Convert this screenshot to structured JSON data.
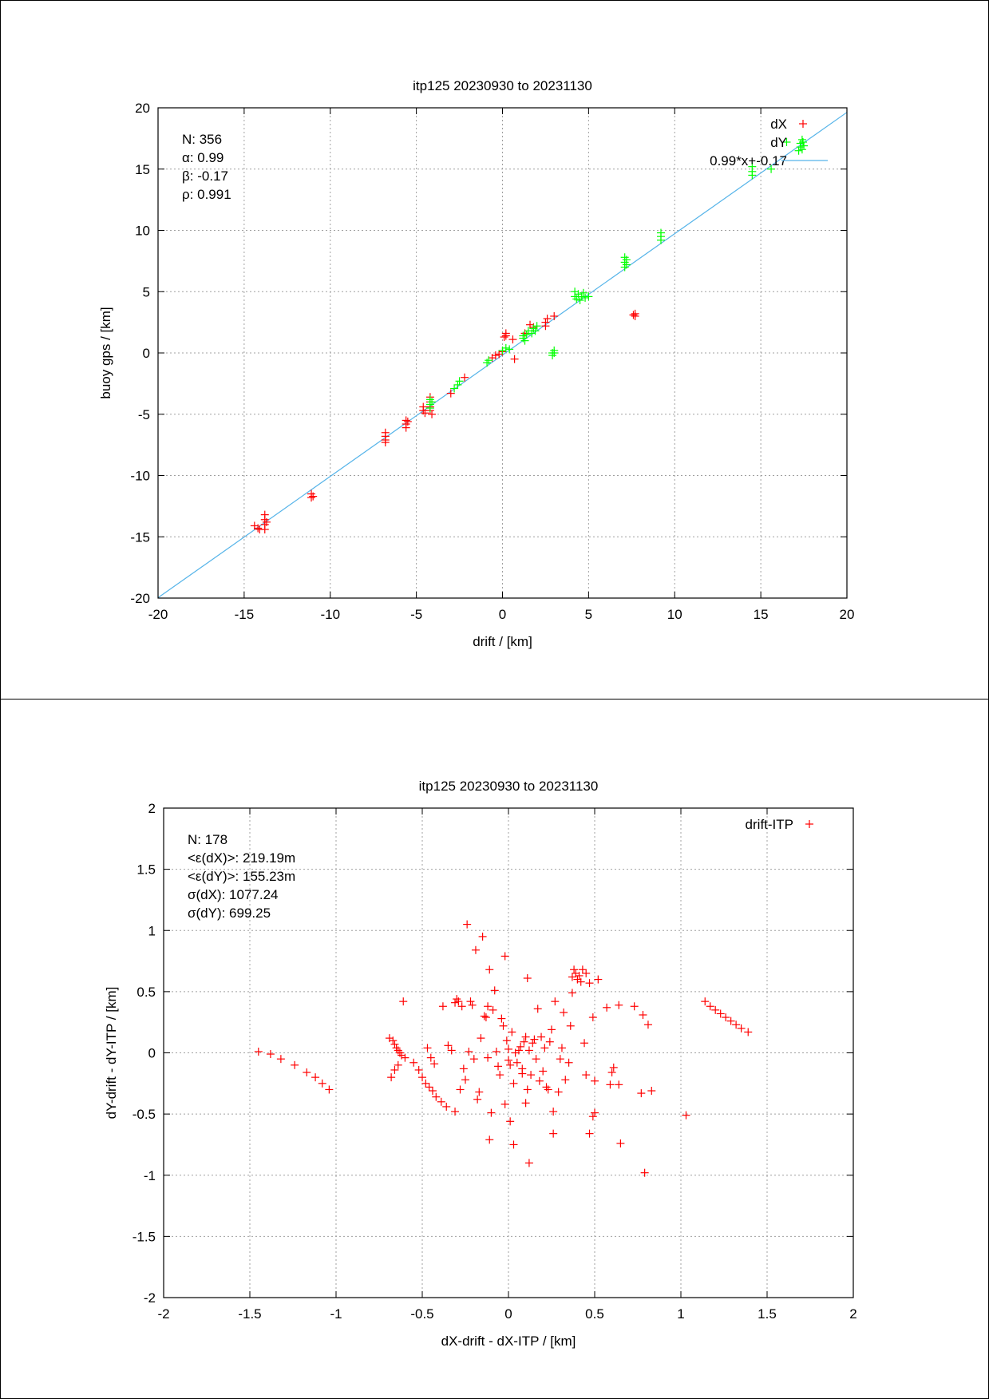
{
  "chart_data": [
    {
      "type": "scatter",
      "title": "itp125 20230930 to 20231130",
      "xlabel": "drift / [km]",
      "ylabel": "buoy gps / [km]",
      "xlim": [
        -20,
        20
      ],
      "ylim": [
        -20,
        20
      ],
      "xticks": [
        "-20",
        "-15",
        "-10",
        "-5",
        "0",
        "5",
        "10",
        "15",
        "20"
      ],
      "yticks": [
        "-20",
        "-15",
        "-10",
        "-5",
        "0",
        "5",
        "10",
        "15",
        "20"
      ],
      "grid": true,
      "legend_position": "top-right",
      "stats": [
        "N: 356",
        "α: 0.99",
        "β: -0.17",
        "ρ: 0.991"
      ],
      "fit": {
        "label": "0.99*x+-0.17",
        "slope": 0.99,
        "intercept": -0.17,
        "color": "#56b4e9"
      },
      "series": [
        {
          "name": "dX",
          "color": "#ff0000",
          "points": [
            [
              -14.4,
              -14.1
            ],
            [
              -14.2,
              -14.3
            ],
            [
              -14.1,
              -14.4
            ],
            [
              -13.8,
              -13.2
            ],
            [
              -13.8,
              -13.6
            ],
            [
              -13.8,
              -14.0
            ],
            [
              -13.8,
              -14.4
            ],
            [
              -13.7,
              -13.8
            ],
            [
              -11.1,
              -11.5
            ],
            [
              -11.0,
              -11.7
            ],
            [
              -11.1,
              -11.8
            ],
            [
              -6.8,
              -6.5
            ],
            [
              -6.8,
              -6.8
            ],
            [
              -6.8,
              -7.1
            ],
            [
              -6.8,
              -7.3
            ],
            [
              -5.6,
              -5.5
            ],
            [
              -5.6,
              -5.8
            ],
            [
              -5.6,
              -6.1
            ],
            [
              -5.5,
              -5.6
            ],
            [
              -4.6,
              -4.4
            ],
            [
              -4.6,
              -4.7
            ],
            [
              -4.5,
              -4.9
            ],
            [
              -4.2,
              -3.6
            ],
            [
              -4.2,
              -4.0
            ],
            [
              -4.2,
              -4.4
            ],
            [
              -4.2,
              -4.7
            ],
            [
              -4.1,
              -5.0
            ],
            [
              -3.0,
              -3.3
            ],
            [
              -2.2,
              -2.0
            ],
            [
              -0.6,
              -0.4
            ],
            [
              -0.4,
              -0.2
            ],
            [
              -0.2,
              -0.1
            ],
            [
              0.0,
              0.1
            ],
            [
              0.1,
              1.3
            ],
            [
              0.2,
              1.6
            ],
            [
              0.2,
              1.4
            ],
            [
              0.6,
              1.1
            ],
            [
              0.7,
              -0.5
            ],
            [
              1.3,
              1.6
            ],
            [
              1.6,
              2.3
            ],
            [
              1.8,
              2.1
            ],
            [
              2.5,
              2.2
            ],
            [
              2.5,
              2.5
            ],
            [
              2.6,
              2.8
            ],
            [
              3.0,
              3.0
            ],
            [
              7.6,
              3.1
            ],
            [
              7.7,
              3.2
            ],
            [
              7.7,
              3.0
            ]
          ]
        },
        {
          "name": "dY",
          "color": "#00ff00",
          "points": [
            [
              -4.2,
              -3.8
            ],
            [
              -4.2,
              -4.2
            ],
            [
              -4.2,
              -4.5
            ],
            [
              -4.1,
              -4.0
            ],
            [
              -2.8,
              -2.9
            ],
            [
              -2.6,
              -2.6
            ],
            [
              -2.5,
              -2.3
            ],
            [
              -0.9,
              -0.8
            ],
            [
              -0.8,
              -0.6
            ],
            [
              0.0,
              0.2
            ],
            [
              0.2,
              0.4
            ],
            [
              0.4,
              0.3
            ],
            [
              1.2,
              1.2
            ],
            [
              1.2,
              1.4
            ],
            [
              1.3,
              1.0
            ],
            [
              1.4,
              1.5
            ],
            [
              1.5,
              1.8
            ],
            [
              1.7,
              1.6
            ],
            [
              1.8,
              2.0
            ],
            [
              1.9,
              1.8
            ],
            [
              2.0,
              2.2
            ],
            [
              2.9,
              0.0
            ],
            [
              2.9,
              -0.2
            ],
            [
              3.0,
              0.2
            ],
            [
              3.0,
              0.0
            ],
            [
              4.2,
              4.6
            ],
            [
              4.2,
              5.0
            ],
            [
              4.3,
              4.4
            ],
            [
              4.4,
              4.8
            ],
            [
              4.5,
              4.3
            ],
            [
              4.6,
              4.6
            ],
            [
              4.7,
              4.9
            ],
            [
              4.8,
              4.5
            ],
            [
              5.0,
              4.6
            ],
            [
              7.1,
              7.0
            ],
            [
              7.1,
              7.4
            ],
            [
              7.1,
              7.8
            ],
            [
              7.2,
              7.2
            ],
            [
              7.2,
              7.6
            ],
            [
              9.2,
              9.2
            ],
            [
              9.2,
              9.5
            ],
            [
              9.2,
              9.8
            ],
            [
              14.5,
              14.5
            ],
            [
              14.5,
              14.8
            ],
            [
              14.5,
              15.2
            ],
            [
              15.6,
              15.0
            ],
            [
              16.5,
              17.2
            ],
            [
              17.2,
              16.5
            ],
            [
              17.3,
              16.8
            ],
            [
              17.3,
              17.1
            ],
            [
              17.4,
              17.4
            ],
            [
              17.4,
              16.6
            ],
            [
              17.5,
              16.9
            ]
          ]
        }
      ]
    },
    {
      "type": "scatter",
      "title": "itp125 20230930 to 20231130",
      "xlabel": "dX-drift - dX-ITP / [km]",
      "ylabel": "dY-drift - dY-ITP / [km]",
      "xlim": [
        -2,
        2
      ],
      "ylim": [
        -2,
        2
      ],
      "xticks": [
        "-2",
        "-1.5",
        "-1",
        "-0.5",
        "0",
        "0.5",
        "1",
        "1.5",
        "2"
      ],
      "yticks": [
        "-2",
        "-1.5",
        "-1",
        "-0.5",
        "0",
        "0.5",
        "1",
        "1.5",
        "2"
      ],
      "grid": true,
      "legend_position": "top-right",
      "stats": [
        "N: 178",
        "<ε(dX)>:  219.19m",
        "<ε(dY)>: 155.23m",
        "σ(dX):  1077.24",
        "σ(dY):  699.25"
      ],
      "series": [
        {
          "name": "drift-ITP",
          "color": "#ff0000",
          "points": [
            [
              -1.45,
              0.01
            ],
            [
              -1.38,
              -0.01
            ],
            [
              -1.32,
              -0.05
            ],
            [
              -1.24,
              -0.1
            ],
            [
              -1.17,
              -0.16
            ],
            [
              -1.12,
              -0.2
            ],
            [
              -1.08,
              -0.25
            ],
            [
              -1.04,
              -0.3
            ],
            [
              -0.69,
              0.12
            ],
            [
              -0.67,
              0.1
            ],
            [
              -0.66,
              0.07
            ],
            [
              -0.65,
              0.04
            ],
            [
              -0.64,
              0.02
            ],
            [
              -0.63,
              0.0
            ],
            [
              -0.62,
              -0.02
            ],
            [
              -0.6,
              -0.04
            ],
            [
              -0.68,
              -0.2
            ],
            [
              -0.66,
              -0.14
            ],
            [
              -0.64,
              -0.1
            ],
            [
              -0.61,
              0.42
            ],
            [
              -0.55,
              -0.08
            ],
            [
              -0.52,
              -0.14
            ],
            [
              -0.5,
              -0.2
            ],
            [
              -0.48,
              -0.25
            ],
            [
              -0.46,
              -0.28
            ],
            [
              -0.44,
              -0.31
            ],
            [
              -0.42,
              -0.36
            ],
            [
              -0.39,
              -0.4
            ],
            [
              -0.36,
              -0.44
            ],
            [
              -0.31,
              -0.48
            ],
            [
              -0.47,
              0.04
            ],
            [
              -0.45,
              -0.04
            ],
            [
              -0.43,
              -0.09
            ],
            [
              -0.38,
              0.38
            ],
            [
              -0.35,
              0.06
            ],
            [
              -0.33,
              0.02
            ],
            [
              -0.31,
              0.41
            ],
            [
              -0.3,
              0.44
            ],
            [
              -0.29,
              0.42
            ],
            [
              -0.28,
              -0.3
            ],
            [
              -0.27,
              0.38
            ],
            [
              -0.26,
              -0.13
            ],
            [
              -0.25,
              -0.22
            ],
            [
              -0.24,
              1.05
            ],
            [
              -0.23,
              0.01
            ],
            [
              -0.22,
              0.42
            ],
            [
              -0.21,
              0.39
            ],
            [
              -0.2,
              -0.05
            ],
            [
              -0.19,
              0.84
            ],
            [
              -0.18,
              -0.38
            ],
            [
              -0.17,
              -0.32
            ],
            [
              -0.16,
              0.12
            ],
            [
              -0.15,
              0.95
            ],
            [
              -0.14,
              0.3
            ],
            [
              -0.13,
              0.29
            ],
            [
              -0.12,
              0.38
            ],
            [
              -0.12,
              -0.04
            ],
            [
              -0.11,
              0.68
            ],
            [
              -0.11,
              -0.71
            ],
            [
              -0.1,
              -0.49
            ],
            [
              -0.09,
              0.35
            ],
            [
              -0.08,
              0.51
            ],
            [
              -0.07,
              0.01
            ],
            [
              -0.06,
              -0.11
            ],
            [
              -0.05,
              -0.18
            ],
            [
              -0.04,
              0.28
            ],
            [
              -0.03,
              0.22
            ],
            [
              -0.02,
              0.79
            ],
            [
              -0.02,
              -0.42
            ],
            [
              -0.01,
              0.1
            ],
            [
              0.0,
              0.03
            ],
            [
              0.0,
              -0.06
            ],
            [
              0.01,
              -0.1
            ],
            [
              0.01,
              -0.56
            ],
            [
              0.02,
              0.17
            ],
            [
              0.03,
              -0.75
            ],
            [
              0.03,
              -0.25
            ],
            [
              0.04,
              0.0
            ],
            [
              0.05,
              -0.08
            ],
            [
              0.06,
              0.02
            ],
            [
              0.07,
              0.05
            ],
            [
              0.08,
              -0.17
            ],
            [
              0.08,
              -0.13
            ],
            [
              0.09,
              0.09
            ],
            [
              0.1,
              -0.41
            ],
            [
              0.1,
              0.13
            ],
            [
              0.11,
              -0.3
            ],
            [
              0.11,
              0.61
            ],
            [
              0.12,
              0.02
            ],
            [
              0.12,
              -0.9
            ],
            [
              0.13,
              -0.18
            ],
            [
              0.14,
              0.08
            ],
            [
              0.15,
              0.11
            ],
            [
              0.16,
              -0.05
            ],
            [
              0.17,
              0.36
            ],
            [
              0.18,
              -0.23
            ],
            [
              0.19,
              0.13
            ],
            [
              0.2,
              -0.15
            ],
            [
              0.21,
              0.04
            ],
            [
              0.22,
              -0.28
            ],
            [
              0.23,
              -0.3
            ],
            [
              0.24,
              0.09
            ],
            [
              0.25,
              0.19
            ],
            [
              0.26,
              -0.66
            ],
            [
              0.26,
              -0.48
            ],
            [
              0.27,
              0.42
            ],
            [
              0.29,
              -0.32
            ],
            [
              0.3,
              -0.05
            ],
            [
              0.31,
              0.04
            ],
            [
              0.32,
              0.33
            ],
            [
              0.33,
              -0.22
            ],
            [
              0.35,
              -0.08
            ],
            [
              0.36,
              0.22
            ],
            [
              0.37,
              0.49
            ],
            [
              0.37,
              0.62
            ],
            [
              0.38,
              0.68
            ],
            [
              0.39,
              0.65
            ],
            [
              0.4,
              0.6
            ],
            [
              0.41,
              0.63
            ],
            [
              0.42,
              0.58
            ],
            [
              0.43,
              0.68
            ],
            [
              0.45,
              0.65
            ],
            [
              0.47,
              0.57
            ],
            [
              0.44,
              0.08
            ],
            [
              0.45,
              -0.18
            ],
            [
              0.47,
              -0.66
            ],
            [
              0.49,
              -0.52
            ],
            [
              0.5,
              -0.49
            ],
            [
              0.49,
              0.29
            ],
            [
              0.5,
              -0.23
            ],
            [
              0.52,
              0.6
            ],
            [
              0.57,
              0.37
            ],
            [
              0.59,
              -0.26
            ],
            [
              0.6,
              -0.16
            ],
            [
              0.61,
              -0.12
            ],
            [
              0.64,
              -0.26
            ],
            [
              0.64,
              0.39
            ],
            [
              0.65,
              -0.74
            ],
            [
              0.73,
              0.38
            ],
            [
              0.77,
              -0.33
            ],
            [
              0.78,
              0.31
            ],
            [
              0.79,
              -0.98
            ],
            [
              0.81,
              0.23
            ],
            [
              0.83,
              -0.31
            ],
            [
              1.03,
              -0.51
            ],
            [
              1.14,
              0.42
            ],
            [
              1.17,
              0.38
            ],
            [
              1.2,
              0.35
            ],
            [
              1.23,
              0.32
            ],
            [
              1.26,
              0.29
            ],
            [
              1.29,
              0.26
            ],
            [
              1.32,
              0.23
            ],
            [
              1.35,
              0.2
            ],
            [
              1.39,
              0.17
            ]
          ]
        }
      ]
    }
  ]
}
